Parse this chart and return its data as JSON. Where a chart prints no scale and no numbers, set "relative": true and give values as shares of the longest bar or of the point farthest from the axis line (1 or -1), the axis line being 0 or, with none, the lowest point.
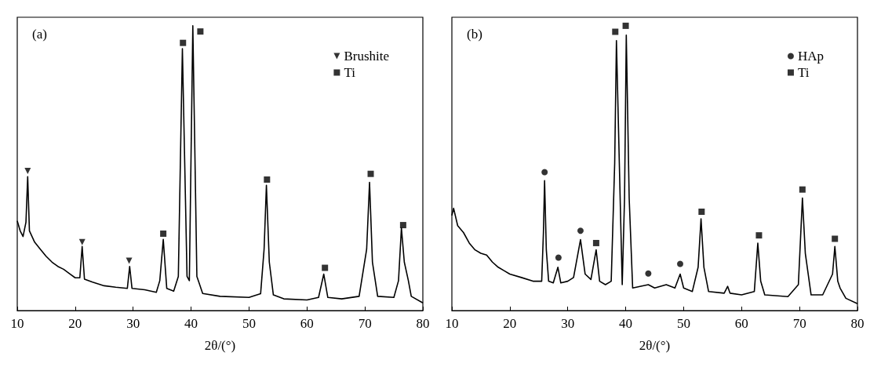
{
  "chart_data": [
    {
      "type": "line",
      "title": "(a)",
      "xlabel": "2θ/(°)",
      "relative": true,
      "xlim": [
        10,
        80
      ],
      "xticks": [
        10,
        20,
        30,
        40,
        50,
        60,
        70,
        80
      ],
      "grid": false,
      "legend": "top right",
      "series": [
        {
          "color": "#000000",
          "marker": "none",
          "x": [
            10,
            10.5,
            11,
            11.5,
            11.8,
            12.1,
            13,
            14,
            15,
            16,
            17,
            18,
            19,
            20,
            20.8,
            21.2,
            21.6,
            23,
            25,
            27,
            29,
            29.4,
            29.8,
            32,
            34,
            34.6,
            35.2,
            35.8,
            37,
            37.8,
            38.5,
            39.3,
            39.7,
            40.3,
            41,
            42,
            45,
            50,
            52,
            52.6,
            53,
            53.5,
            54.2,
            56,
            60,
            62,
            62.9,
            63.6,
            66,
            69,
            70.3,
            70.8,
            71.3,
            72.2,
            75,
            75.8,
            76.3,
            76.8,
            77.5,
            78,
            80
          ],
          "values": [
            0.315,
            0.28,
            0.26,
            0.31,
            0.47,
            0.28,
            0.24,
            0.215,
            0.19,
            0.17,
            0.155,
            0.145,
            0.13,
            0.115,
            0.115,
            0.225,
            0.11,
            0.1,
            0.087,
            0.082,
            0.078,
            0.155,
            0.078,
            0.073,
            0.064,
            0.105,
            0.25,
            0.078,
            0.068,
            0.12,
            0.92,
            0.12,
            0.105,
            1.0,
            0.12,
            0.06,
            0.05,
            0.046,
            0.059,
            0.215,
            0.44,
            0.17,
            0.055,
            0.041,
            0.037,
            0.046,
            0.128,
            0.046,
            0.041,
            0.05,
            0.215,
            0.45,
            0.17,
            0.05,
            0.046,
            0.105,
            0.29,
            0.17,
            0.105,
            0.05,
            0.027
          ]
        },
        {
          "type": "scatter",
          "name": "Brushite",
          "color": "#000000",
          "marker": "triangle",
          "x": [
            11.8,
            21.2,
            29.3
          ],
          "values": [
            0.49,
            0.24,
            0.175
          ]
        },
        {
          "type": "scatter",
          "name": "Ti",
          "color": "#000000",
          "marker": "square",
          "x": [
            35.2,
            38.6,
            41.6,
            53.1,
            63.1,
            71.0,
            76.6
          ],
          "values": [
            0.27,
            0.94,
            0.98,
            0.46,
            0.15,
            0.48,
            0.3
          ]
        }
      ]
    },
    {
      "type": "line",
      "title": "(b)",
      "xlabel": "2θ/(°)",
      "relative": true,
      "xlim": [
        10,
        80
      ],
      "xticks": [
        10,
        20,
        30,
        40,
        50,
        60,
        70,
        80
      ],
      "grid": false,
      "legend": "top right",
      "series": [
        {
          "color": "#000000",
          "marker": "none",
          "x": [
            10,
            10.3,
            11,
            12,
            13,
            14,
            15,
            16,
            17,
            18,
            19,
            20,
            22,
            24,
            25.5,
            25.8,
            26.0,
            26.3,
            26.7,
            27.5,
            28.3,
            28.8,
            30,
            31,
            32.2,
            33,
            34,
            34.9,
            35.5,
            36.5,
            37.5,
            38.1,
            38.4,
            38.9,
            39.4,
            39.8,
            40.1,
            40.6,
            41.2,
            43.9,
            45,
            47,
            48.5,
            49.4,
            50,
            51.5,
            52.5,
            53.0,
            53.5,
            54.3,
            57,
            57.6,
            58,
            60,
            62.2,
            62.8,
            63.3,
            64,
            68,
            69.8,
            70.5,
            71,
            72,
            74,
            75.7,
            76.1,
            76.6,
            77,
            78,
            80
          ],
          "values": [
            0.334,
            0.359,
            0.298,
            0.274,
            0.237,
            0.213,
            0.201,
            0.195,
            0.17,
            0.152,
            0.14,
            0.128,
            0.116,
            0.103,
            0.103,
            0.274,
            0.456,
            0.213,
            0.103,
            0.097,
            0.152,
            0.097,
            0.103,
            0.116,
            0.249,
            0.128,
            0.109,
            0.213,
            0.103,
            0.091,
            0.103,
            0.517,
            0.948,
            0.517,
            0.091,
            0.395,
            0.967,
            0.395,
            0.079,
            0.091,
            0.079,
            0.091,
            0.079,
            0.128,
            0.079,
            0.067,
            0.152,
            0.322,
            0.152,
            0.067,
            0.061,
            0.085,
            0.061,
            0.055,
            0.067,
            0.237,
            0.103,
            0.055,
            0.049,
            0.091,
            0.395,
            0.201,
            0.055,
            0.055,
            0.128,
            0.225,
            0.103,
            0.079,
            0.043,
            0.024
          ]
        },
        {
          "type": "scatter",
          "name": "HAp",
          "color": "#000000",
          "marker": "circle",
          "x": [
            26.0,
            28.4,
            32.2,
            43.9,
            49.4
          ],
          "values": [
            0.486,
            0.186,
            0.28,
            0.13,
            0.164
          ]
        },
        {
          "type": "scatter",
          "name": "Ti",
          "color": "#000000",
          "marker": "square",
          "x": [
            34.9,
            38.2,
            40.0,
            53.1,
            63.0,
            70.5,
            76.1
          ],
          "values": [
            0.237,
            0.979,
            1.0,
            0.347,
            0.264,
            0.425,
            0.252
          ]
        }
      ]
    }
  ]
}
